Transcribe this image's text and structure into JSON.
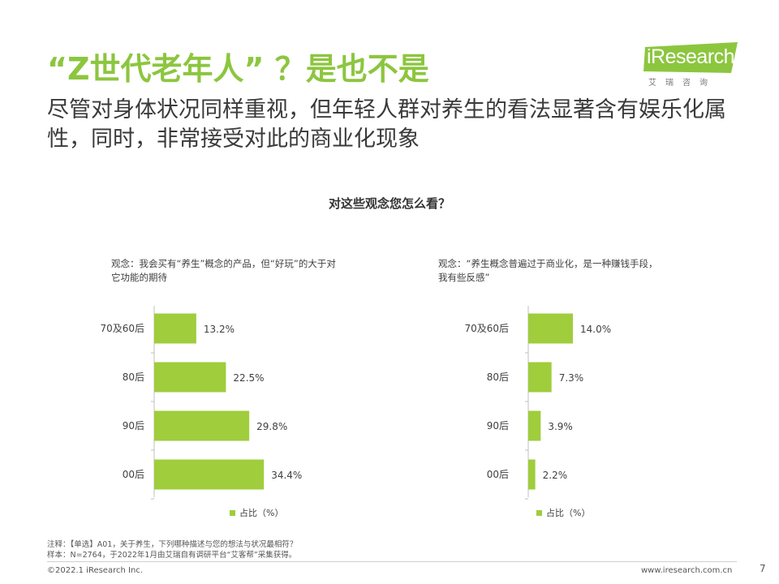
{
  "header": {
    "title": "“Z世代老年人” ？是也不是",
    "subtitle": "尽管对身体状况同样重视，但年轻人群对养生的看法显著含有娱乐化属性，同时，非常接受对此的商业化现象"
  },
  "logo": {
    "word": "iResearch",
    "sub": "艾瑞咨询"
  },
  "question": "对这些观念您怎么看？",
  "colors": {
    "accent": "#8cc63f",
    "bar": "#9fcd3c",
    "axis": "#bfbfbf"
  },
  "chart_data": [
    {
      "type": "bar",
      "orientation": "horizontal",
      "title": "观念：我会买有“养生”概念的产品，但“好玩”的大于对它功能的期待",
      "categories": [
        "70及60后",
        "80后",
        "90后",
        "00后"
      ],
      "values": [
        13.2,
        22.5,
        29.8,
        34.4
      ],
      "labels": [
        "13.2%",
        "22.5%",
        "29.8%",
        "34.4%"
      ],
      "legend": "占比（%）",
      "xlim": [
        0,
        40
      ]
    },
    {
      "type": "bar",
      "orientation": "horizontal",
      "title": "观念：“养生概念普遍过于商业化，是一种赚钱手段，我有些反感”",
      "categories": [
        "70及60后",
        "80后",
        "90后",
        "00后"
      ],
      "values": [
        14.0,
        7.3,
        3.9,
        2.2
      ],
      "labels": [
        "14.0%",
        "7.3%",
        "3.9%",
        "2.2%"
      ],
      "legend": "占比（%）",
      "xlim": [
        0,
        40
      ]
    }
  ],
  "footer": {
    "note": "注释：【单选】A01，关于养生，下列哪种描述与您的想法与状况最相符？",
    "sample": "样本：N=2764，于2022年1月由艾瑞自有调研平台“艾客帮”采集获得。",
    "copyright": "©2022.1 iResearch Inc.",
    "website": "www.iresearch.com.cn",
    "page": "7"
  }
}
